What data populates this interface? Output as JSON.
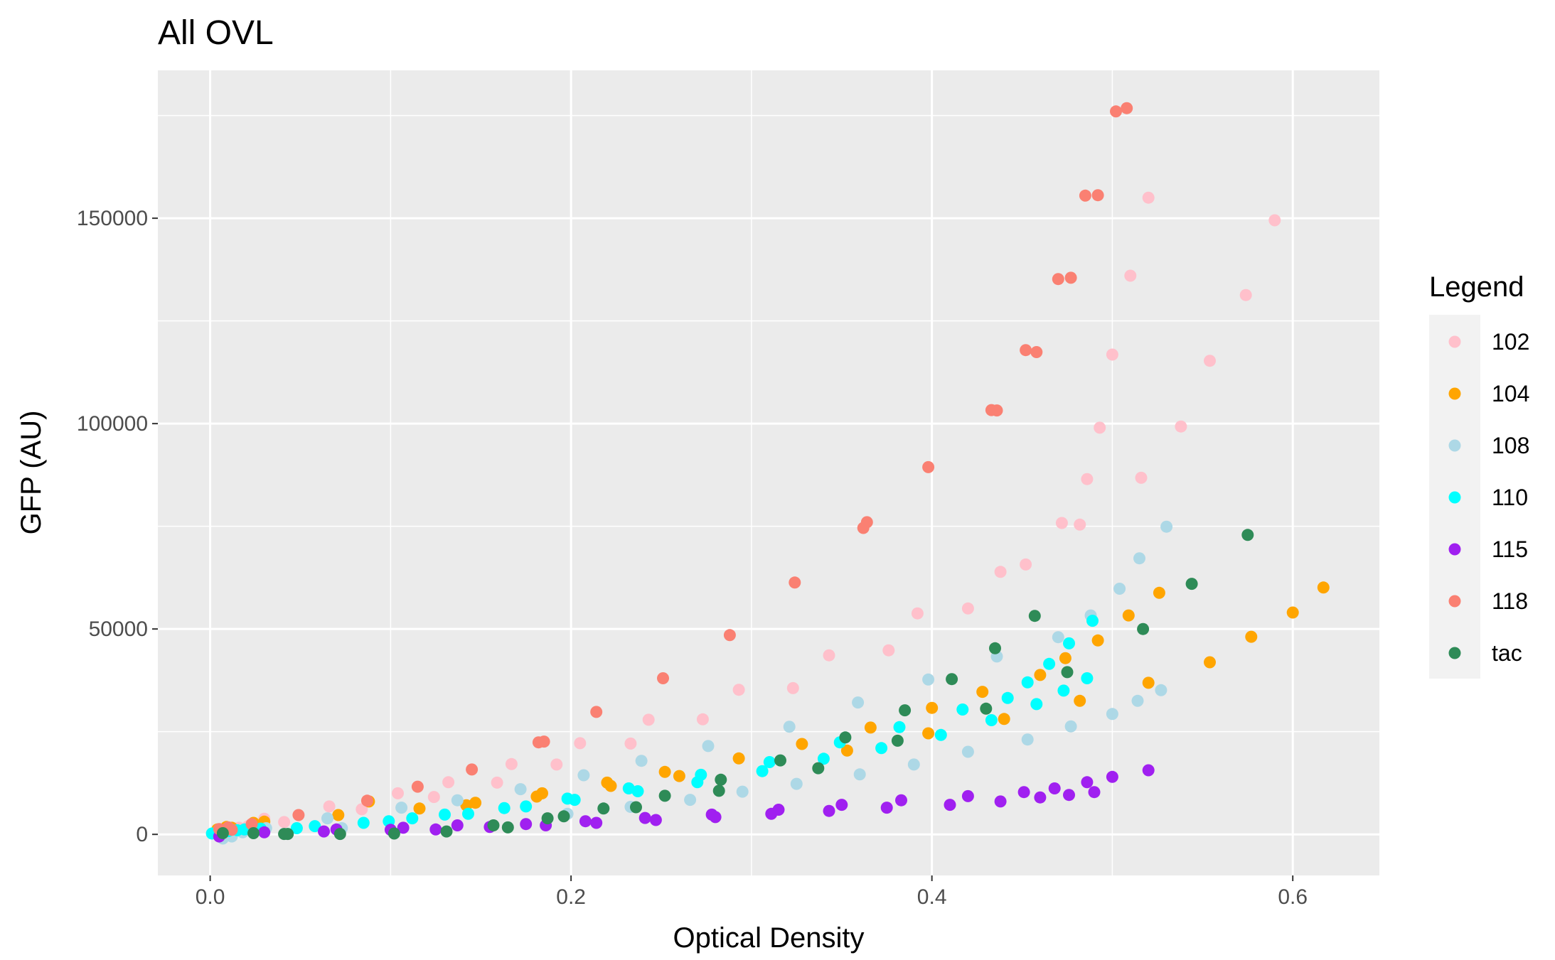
{
  "chart_data": {
    "type": "scatter",
    "title": "All OVL",
    "xlabel": "Optical Density",
    "ylabel": "GFP (AU)",
    "xlim": [
      -0.029,
      0.648
    ],
    "ylim": [
      -10000,
      186000
    ],
    "xticks": [
      0.0,
      0.2,
      0.4,
      0.6
    ],
    "xtick_labels": [
      "0.0",
      "0.2",
      "0.4",
      "0.6"
    ],
    "yticks": [
      0,
      50000,
      100000,
      150000
    ],
    "ytick_labels": [
      "0",
      "50000",
      "100000",
      "150000"
    ],
    "grid": true,
    "legend": {
      "title": "Legend",
      "position": "right"
    },
    "series": [
      {
        "name": "102",
        "color": "#FFC0CB",
        "points": [
          [
            0.003,
            500
          ],
          [
            0.006,
            800
          ],
          [
            0.009,
            1200
          ],
          [
            0.012,
            1500
          ],
          [
            0.016,
            1600
          ],
          [
            0.021,
            2000
          ],
          [
            0.03,
            3800
          ],
          [
            0.041,
            3000
          ],
          [
            0.066,
            6800
          ],
          [
            0.084,
            6100
          ],
          [
            0.104,
            10000
          ],
          [
            0.124,
            9100
          ],
          [
            0.132,
            12700
          ],
          [
            0.159,
            12600
          ],
          [
            0.167,
            17100
          ],
          [
            0.192,
            17000
          ],
          [
            0.205,
            22200
          ],
          [
            0.233,
            22100
          ],
          [
            0.243,
            27900
          ],
          [
            0.273,
            28000
          ],
          [
            0.293,
            35200
          ],
          [
            0.323,
            35600
          ],
          [
            0.343,
            43600
          ],
          [
            0.376,
            44800
          ],
          [
            0.392,
            53800
          ],
          [
            0.42,
            55000
          ],
          [
            0.438,
            63900
          ],
          [
            0.452,
            65700
          ],
          [
            0.472,
            75800
          ],
          [
            0.482,
            75400
          ],
          [
            0.486,
            86500
          ],
          [
            0.493,
            99000
          ],
          [
            0.5,
            116800
          ],
          [
            0.51,
            136000
          ],
          [
            0.516,
            86800
          ],
          [
            0.52,
            155000
          ],
          [
            0.538,
            99300
          ],
          [
            0.554,
            115300
          ],
          [
            0.574,
            131300
          ],
          [
            0.59,
            149500
          ]
        ]
      },
      {
        "name": "104",
        "color": "#FFA500",
        "points": [
          [
            0.004,
            1200
          ],
          [
            0.009,
            1800
          ],
          [
            0.012,
            1600
          ],
          [
            0.024,
            2800
          ],
          [
            0.03,
            3100
          ],
          [
            0.071,
            4700
          ],
          [
            0.088,
            8000
          ],
          [
            0.116,
            6300
          ],
          [
            0.142,
            7100
          ],
          [
            0.147,
            7700
          ],
          [
            0.181,
            9200
          ],
          [
            0.184,
            10000
          ],
          [
            0.22,
            12600
          ],
          [
            0.222,
            11800
          ],
          [
            0.252,
            15200
          ],
          [
            0.26,
            14200
          ],
          [
            0.293,
            18500
          ],
          [
            0.328,
            22000
          ],
          [
            0.353,
            20400
          ],
          [
            0.366,
            26000
          ],
          [
            0.398,
            24600
          ],
          [
            0.4,
            30800
          ],
          [
            0.428,
            34700
          ],
          [
            0.44,
            28100
          ],
          [
            0.46,
            38800
          ],
          [
            0.474,
            42900
          ],
          [
            0.482,
            32500
          ],
          [
            0.492,
            47200
          ],
          [
            0.509,
            53300
          ],
          [
            0.52,
            36900
          ],
          [
            0.526,
            58800
          ],
          [
            0.554,
            41900
          ],
          [
            0.577,
            48100
          ],
          [
            0.6,
            54000
          ],
          [
            0.617,
            60100
          ]
        ]
      },
      {
        "name": "108",
        "color": "#ADD8E6",
        "points": [
          [
            0.007,
            -1000
          ],
          [
            0.012,
            -500
          ],
          [
            0.018,
            500
          ],
          [
            0.031,
            1500
          ],
          [
            0.065,
            3900
          ],
          [
            0.073,
            1500
          ],
          [
            0.106,
            6500
          ],
          [
            0.137,
            8300
          ],
          [
            0.172,
            11000
          ],
          [
            0.198,
            5000
          ],
          [
            0.207,
            14400
          ],
          [
            0.233,
            6700
          ],
          [
            0.239,
            17900
          ],
          [
            0.266,
            8400
          ],
          [
            0.276,
            21500
          ],
          [
            0.295,
            10400
          ],
          [
            0.321,
            26200
          ],
          [
            0.325,
            12300
          ],
          [
            0.359,
            32100
          ],
          [
            0.36,
            14600
          ],
          [
            0.39,
            17000
          ],
          [
            0.398,
            37700
          ],
          [
            0.42,
            20100
          ],
          [
            0.436,
            43300
          ],
          [
            0.453,
            23100
          ],
          [
            0.47,
            48000
          ],
          [
            0.477,
            26300
          ],
          [
            0.488,
            53300
          ],
          [
            0.5,
            29300
          ],
          [
            0.504,
            59800
          ],
          [
            0.514,
            32500
          ],
          [
            0.515,
            67200
          ],
          [
            0.527,
            35100
          ],
          [
            0.53,
            74900
          ]
        ]
      },
      {
        "name": "110",
        "color": "#00FFFF",
        "points": [
          [
            0.001,
            200
          ],
          [
            0.006,
            600
          ],
          [
            0.01,
            800
          ],
          [
            0.015,
            1000
          ],
          [
            0.019,
            1200
          ],
          [
            0.028,
            1400
          ],
          [
            0.048,
            1500
          ],
          [
            0.058,
            2000
          ],
          [
            0.085,
            2800
          ],
          [
            0.099,
            3200
          ],
          [
            0.112,
            3900
          ],
          [
            0.13,
            4800
          ],
          [
            0.143,
            5000
          ],
          [
            0.163,
            6400
          ],
          [
            0.175,
            6800
          ],
          [
            0.198,
            8700
          ],
          [
            0.202,
            8400
          ],
          [
            0.232,
            11200
          ],
          [
            0.237,
            10500
          ],
          [
            0.27,
            12700
          ],
          [
            0.272,
            14500
          ],
          [
            0.306,
            15400
          ],
          [
            0.31,
            17600
          ],
          [
            0.34,
            18400
          ],
          [
            0.349,
            22400
          ],
          [
            0.372,
            21000
          ],
          [
            0.382,
            26100
          ],
          [
            0.405,
            24200
          ],
          [
            0.417,
            30400
          ],
          [
            0.433,
            27800
          ],
          [
            0.442,
            33200
          ],
          [
            0.453,
            37000
          ],
          [
            0.458,
            31700
          ],
          [
            0.465,
            41500
          ],
          [
            0.473,
            35000
          ],
          [
            0.476,
            46500
          ],
          [
            0.486,
            38000
          ],
          [
            0.489,
            52000
          ]
        ]
      },
      {
        "name": "115",
        "color": "#A020F0",
        "points": [
          [
            0.005,
            -500
          ],
          [
            0.03,
            500
          ],
          [
            0.063,
            700
          ],
          [
            0.07,
            1200
          ],
          [
            0.1,
            1100
          ],
          [
            0.107,
            1600
          ],
          [
            0.125,
            1200
          ],
          [
            0.137,
            2200
          ],
          [
            0.155,
            1800
          ],
          [
            0.175,
            2500
          ],
          [
            0.186,
            2200
          ],
          [
            0.208,
            3200
          ],
          [
            0.214,
            2800
          ],
          [
            0.241,
            4000
          ],
          [
            0.247,
            3500
          ],
          [
            0.278,
            4800
          ],
          [
            0.28,
            4200
          ],
          [
            0.311,
            5000
          ],
          [
            0.315,
            6000
          ],
          [
            0.343,
            5700
          ],
          [
            0.35,
            7200
          ],
          [
            0.375,
            6500
          ],
          [
            0.383,
            8300
          ],
          [
            0.41,
            7200
          ],
          [
            0.42,
            9300
          ],
          [
            0.438,
            8000
          ],
          [
            0.451,
            10300
          ],
          [
            0.46,
            9000
          ],
          [
            0.468,
            11200
          ],
          [
            0.476,
            9600
          ],
          [
            0.486,
            12700
          ],
          [
            0.49,
            10300
          ],
          [
            0.5,
            14000
          ],
          [
            0.52,
            15600
          ]
        ]
      },
      {
        "name": "118",
        "color": "#FA8072",
        "points": [
          [
            0.005,
            1300
          ],
          [
            0.01,
            1700
          ],
          [
            0.012,
            1100
          ],
          [
            0.023,
            2500
          ],
          [
            0.049,
            4700
          ],
          [
            0.087,
            8200
          ],
          [
            0.115,
            11600
          ],
          [
            0.145,
            15800
          ],
          [
            0.182,
            22400
          ],
          [
            0.185,
            22600
          ],
          [
            0.214,
            29800
          ],
          [
            0.251,
            38000
          ],
          [
            0.288,
            48500
          ],
          [
            0.324,
            61300
          ],
          [
            0.362,
            74600
          ],
          [
            0.364,
            76000
          ],
          [
            0.398,
            89400
          ],
          [
            0.433,
            103300
          ],
          [
            0.436,
            103200
          ],
          [
            0.452,
            117900
          ],
          [
            0.458,
            117400
          ],
          [
            0.47,
            135200
          ],
          [
            0.477,
            135500
          ],
          [
            0.485,
            155500
          ],
          [
            0.492,
            155600
          ],
          [
            0.502,
            176000
          ],
          [
            0.508,
            176800
          ]
        ]
      },
      {
        "name": "tac",
        "color": "#2E8B57",
        "points": [
          [
            0.007,
            300
          ],
          [
            0.024,
            300
          ],
          [
            0.041,
            100
          ],
          [
            0.043,
            100
          ],
          [
            0.072,
            100
          ],
          [
            0.102,
            200
          ],
          [
            0.131,
            700
          ],
          [
            0.157,
            2200
          ],
          [
            0.165,
            1700
          ],
          [
            0.187,
            3900
          ],
          [
            0.196,
            4400
          ],
          [
            0.218,
            6300
          ],
          [
            0.236,
            6600
          ],
          [
            0.252,
            9400
          ],
          [
            0.282,
            10600
          ],
          [
            0.283,
            13300
          ],
          [
            0.316,
            18000
          ],
          [
            0.337,
            16100
          ],
          [
            0.352,
            23600
          ],
          [
            0.381,
            22800
          ],
          [
            0.385,
            30200
          ],
          [
            0.411,
            37800
          ],
          [
            0.43,
            30600
          ],
          [
            0.435,
            45300
          ],
          [
            0.457,
            53200
          ],
          [
            0.475,
            39500
          ],
          [
            0.517,
            50000
          ],
          [
            0.544,
            61000
          ],
          [
            0.575,
            72900
          ]
        ]
      }
    ]
  }
}
